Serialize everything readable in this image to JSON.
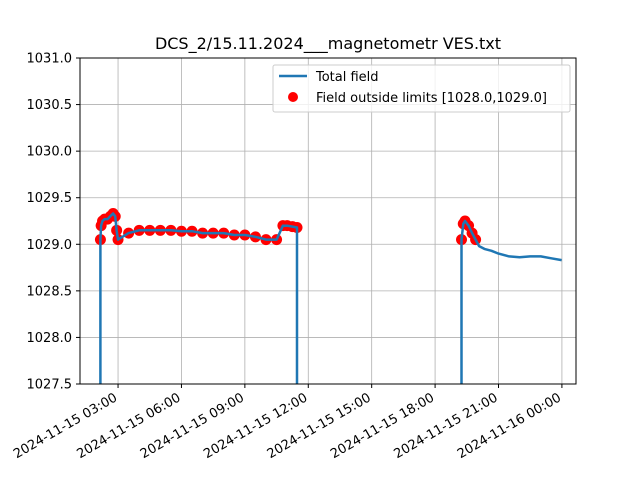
{
  "chart_data": {
    "type": "line",
    "title": "DCS_2/15.11.2024___magnetometr VES.txt",
    "xlabel": "",
    "ylabel": "",
    "x_axis_type": "datetime",
    "xlim": [
      "2024-11-15T01:12",
      "2024-11-16T00:40"
    ],
    "ylim": [
      1027.5,
      1031.0
    ],
    "grid": true,
    "legend_placement": "top-right",
    "x_ticks": [
      "2024-11-15T03:00",
      "2024-11-15T06:00",
      "2024-11-15T09:00",
      "2024-11-15T12:00",
      "2024-11-15T15:00",
      "2024-11-15T18:00",
      "2024-11-15T21:00",
      "2024-11-16T00:00"
    ],
    "x_tick_labels": [
      "2024-11-15 03:00",
      "2024-11-15 06:00",
      "2024-11-15 09:00",
      "2024-11-15 12:00",
      "2024-11-15 15:00",
      "2024-11-15 18:00",
      "2024-11-15 21:00",
      "2024-11-16 00:00"
    ],
    "y_ticks": [
      1027.5,
      1028.0,
      1028.5,
      1029.0,
      1029.5,
      1030.0,
      1030.5,
      1031.0
    ],
    "y_tick_labels": [
      "1027.5",
      "1028.0",
      "1028.5",
      "1029.0",
      "1029.5",
      "1030.0",
      "1030.5",
      "1031.0"
    ],
    "series": [
      {
        "name": "Total field",
        "color": "#1f77b4",
        "segments": [
          {
            "x": [
              "2024-11-15T02:10",
              "2024-11-15T02:10",
              "2024-11-15T02:12",
              "2024-11-15T02:16",
              "2024-11-15T02:22",
              "2024-11-15T02:30",
              "2024-11-15T02:38",
              "2024-11-15T02:46",
              "2024-11-15T02:52",
              "2024-11-15T02:56",
              "2024-11-15T03:00",
              "2024-11-15T03:30",
              "2024-11-15T04:00",
              "2024-11-15T04:30",
              "2024-11-15T05:00",
              "2024-11-15T05:30",
              "2024-11-15T06:00",
              "2024-11-15T06:30",
              "2024-11-15T07:00",
              "2024-11-15T07:30",
              "2024-11-15T08:00",
              "2024-11-15T08:30",
              "2024-11-15T09:00",
              "2024-11-15T09:30",
              "2024-11-15T10:00",
              "2024-11-15T10:30",
              "2024-11-15T10:48",
              "2024-11-15T11:00",
              "2024-11-15T11:15",
              "2024-11-15T11:28",
              "2024-11-15T11:28"
            ],
            "y": [
              1027.5,
              1029.05,
              1029.2,
              1029.25,
              1029.27,
              1029.27,
              1029.3,
              1029.33,
              1029.3,
              1029.15,
              1029.05,
              1029.12,
              1029.15,
              1029.15,
              1029.15,
              1029.15,
              1029.14,
              1029.14,
              1029.12,
              1029.12,
              1029.12,
              1029.1,
              1029.1,
              1029.08,
              1029.05,
              1029.05,
              1029.2,
              1029.2,
              1029.19,
              1029.18,
              1027.5
            ]
          },
          {
            "x": [
              "2024-11-15T19:15",
              "2024-11-15T19:15",
              "2024-11-15T19:20",
              "2024-11-15T19:25",
              "2024-11-15T19:35",
              "2024-11-15T19:45",
              "2024-11-15T19:55",
              "2024-11-15T20:05",
              "2024-11-15T20:20",
              "2024-11-15T20:40",
              "2024-11-15T21:00",
              "2024-11-15T21:30",
              "2024-11-15T22:00",
              "2024-11-15T22:30",
              "2024-11-15T23:00",
              "2024-11-15T23:30",
              "2024-11-15T23:59"
            ],
            "y": [
              1027.5,
              1029.05,
              1029.22,
              1029.25,
              1029.2,
              1029.12,
              1029.05,
              1028.98,
              1028.95,
              1028.93,
              1028.9,
              1028.87,
              1028.86,
              1028.87,
              1028.87,
              1028.85,
              1028.83
            ]
          }
        ]
      },
      {
        "name": "Field outside limits [1028.0,1029.0]",
        "color": "#ff0000",
        "marker": "circle",
        "x": [
          "2024-11-15T02:10",
          "2024-11-15T02:12",
          "2024-11-15T02:16",
          "2024-11-15T02:22",
          "2024-11-15T02:30",
          "2024-11-15T02:38",
          "2024-11-15T02:46",
          "2024-11-15T02:52",
          "2024-11-15T02:56",
          "2024-11-15T03:00",
          "2024-11-15T03:30",
          "2024-11-15T04:00",
          "2024-11-15T04:30",
          "2024-11-15T05:00",
          "2024-11-15T05:30",
          "2024-11-15T06:00",
          "2024-11-15T06:30",
          "2024-11-15T07:00",
          "2024-11-15T07:30",
          "2024-11-15T08:00",
          "2024-11-15T08:30",
          "2024-11-15T09:00",
          "2024-11-15T09:30",
          "2024-11-15T10:00",
          "2024-11-15T10:30",
          "2024-11-15T10:48",
          "2024-11-15T11:00",
          "2024-11-15T11:15",
          "2024-11-15T11:28",
          "2024-11-15T19:15",
          "2024-11-15T19:20",
          "2024-11-15T19:25",
          "2024-11-15T19:35",
          "2024-11-15T19:45",
          "2024-11-15T19:55"
        ],
        "y": [
          1029.05,
          1029.2,
          1029.25,
          1029.27,
          1029.27,
          1029.3,
          1029.33,
          1029.3,
          1029.15,
          1029.05,
          1029.12,
          1029.15,
          1029.15,
          1029.15,
          1029.15,
          1029.14,
          1029.14,
          1029.12,
          1029.12,
          1029.12,
          1029.1,
          1029.1,
          1029.08,
          1029.05,
          1029.05,
          1029.2,
          1029.2,
          1029.19,
          1029.18,
          1029.05,
          1029.22,
          1029.25,
          1029.2,
          1029.12,
          1029.05
        ]
      }
    ]
  }
}
